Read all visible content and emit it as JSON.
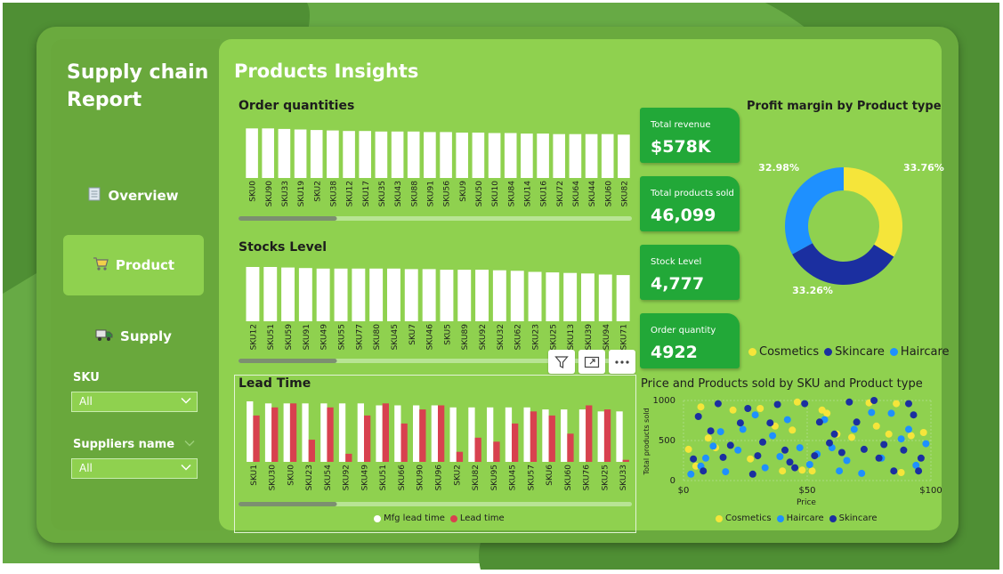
{
  "sidebar": {
    "title": "Supply chain Report",
    "nav": [
      {
        "label": "Overview",
        "icon": "document-icon",
        "active": false
      },
      {
        "label": "Product",
        "icon": "cart-icon",
        "active": true
      },
      {
        "label": "Supply",
        "icon": "truck-icon",
        "active": false
      }
    ],
    "slicers": [
      {
        "label": "SKU",
        "value": "All"
      },
      {
        "label": "Suppliers name",
        "value": "All"
      }
    ]
  },
  "main": {
    "page_title": "Products Insights"
  },
  "kpis": [
    {
      "label": "Total revenue",
      "value": "$578K"
    },
    {
      "label": "Total products sold",
      "value": "46,099"
    },
    {
      "label": "Stock Level",
      "value": "4,777"
    },
    {
      "label": "Order quantity",
      "value": "4922"
    }
  ],
  "toolbar": {
    "icons": [
      "filter-icon",
      "focus-mode-icon",
      "more-options-icon"
    ]
  },
  "colors": {
    "cosmetics": "#f5e53a",
    "skincare": "#1b2fa0",
    "haircare": "#1e90ff",
    "lead_time": "#d8414f",
    "kpi": "#22a838"
  },
  "chart_data": [
    {
      "type": "bar",
      "title": "Order quantities",
      "categories": [
        "SKU0",
        "SKU90",
        "SKU33",
        "SKU19",
        "SKU2",
        "SKU38",
        "SKU12",
        "SKU17",
        "SKU35",
        "SKU43",
        "SKU88",
        "SKU91",
        "SKU56",
        "SKU9",
        "SKU50",
        "SKU10",
        "SKU84",
        "SKU14",
        "SKU16",
        "SKU72",
        "SKU64",
        "SKU44",
        "SKU60",
        "SKU82"
      ],
      "values": [
        96,
        96,
        95,
        94,
        93,
        92,
        91,
        91,
        90,
        90,
        90,
        89,
        89,
        88,
        88,
        87,
        87,
        86,
        86,
        85,
        85,
        85,
        85,
        84
      ],
      "ylim": [
        0,
        100
      ],
      "scrollbar_position": 0.25
    },
    {
      "type": "bar",
      "title": "Stocks Level",
      "categories": [
        "SKU12",
        "SKU51",
        "SKU59",
        "SKU91",
        "SKU49",
        "SKU55",
        "SKU77",
        "SKU80",
        "SKU45",
        "SKU7",
        "SKU46",
        "SKU5",
        "SKU89",
        "SKU92",
        "SKU32",
        "SKU62",
        "SKU23",
        "SKU25",
        "SKU13",
        "SKU39",
        "SKU94",
        "SKU71"
      ],
      "values": [
        100,
        100,
        99,
        98,
        97,
        97,
        97,
        97,
        97,
        96,
        96,
        95,
        95,
        95,
        94,
        93,
        91,
        90,
        89,
        88,
        86,
        85
      ],
      "ylim": [
        0,
        100
      ],
      "scrollbar_position": 0.25
    },
    {
      "type": "bar",
      "title": "Lead Time",
      "categories": [
        "SKU1",
        "SKU30",
        "SKU0",
        "SKU23",
        "SKU54",
        "SKU92",
        "SKU49",
        "SKU51",
        "SKU66",
        "SKU90",
        "SKU96",
        "SKU2",
        "SKU82",
        "SKU95",
        "SKU45",
        "SKU57",
        "SKU6",
        "SKU60",
        "SKU76",
        "SKU25",
        "SKU33"
      ],
      "series": [
        {
          "name": "Mfg lead time",
          "values": [
            30,
            29,
            29,
            29,
            29,
            29,
            29,
            28,
            28,
            28,
            28,
            27,
            27,
            27,
            27,
            27,
            26,
            26,
            26,
            25,
            25
          ]
        },
        {
          "name": "Lead time",
          "values": [
            23,
            27,
            29,
            11,
            27,
            4,
            23,
            29,
            19,
            26,
            28,
            5,
            12,
            10,
            19,
            25,
            23,
            14,
            28,
            26,
            1
          ]
        }
      ],
      "ylim": [
        0,
        30
      ],
      "legend": "bottom",
      "scrollbar_position": 0.25
    },
    {
      "type": "pie",
      "title": "Profit margin by Product type",
      "donut": true,
      "categories": [
        "Cosmetics",
        "Skincare",
        "Haircare"
      ],
      "values": [
        33.76,
        33.26,
        32.98
      ],
      "labels": [
        "33.76%",
        "33.26%",
        "32.98%"
      ],
      "legend": "bottom"
    },
    {
      "type": "scatter",
      "title": "Price and Products sold by SKU and Product type",
      "xlabel": "Price",
      "ylabel": "Total products sold",
      "xlim": [
        0,
        100
      ],
      "ylim": [
        0,
        1000
      ],
      "xticks": [
        "$0",
        "$50",
        "$100"
      ],
      "yticks": [
        "0",
        "500",
        "1000"
      ],
      "legend": "bottom",
      "series": [
        {
          "name": "Cosmetics",
          "points": [
            [
              2,
              390
            ],
            [
              5,
              180
            ],
            [
              7,
              920
            ],
            [
              10,
              530
            ],
            [
              13,
              410
            ],
            [
              20,
              880
            ],
            [
              27,
              270
            ],
            [
              31,
              900
            ],
            [
              37,
              680
            ],
            [
              40,
              120
            ],
            [
              44,
              630
            ],
            [
              46,
              980
            ],
            [
              48,
              130
            ],
            [
              52,
              120
            ],
            [
              56,
              880
            ],
            [
              58,
              840
            ],
            [
              62,
              580
            ],
            [
              68,
              540
            ],
            [
              75,
              970
            ],
            [
              78,
              680
            ],
            [
              83,
              580
            ],
            [
              86,
              960
            ],
            [
              88,
              100
            ],
            [
              92,
              560
            ],
            [
              97,
              600
            ]
          ]
        },
        {
          "name": "Haircare",
          "points": [
            [
              3,
              80
            ],
            [
              7,
              180
            ],
            [
              9,
              280
            ],
            [
              12,
              430
            ],
            [
              15,
              610
            ],
            [
              17,
              110
            ],
            [
              22,
              380
            ],
            [
              24,
              640
            ],
            [
              29,
              820
            ],
            [
              33,
              160
            ],
            [
              36,
              560
            ],
            [
              39,
              300
            ],
            [
              42,
              760
            ],
            [
              47,
              410
            ],
            [
              51,
              200
            ],
            [
              54,
              330
            ],
            [
              57,
              760
            ],
            [
              60,
              410
            ],
            [
              63,
              120
            ],
            [
              66,
              250
            ],
            [
              69,
              640
            ],
            [
              72,
              90
            ],
            [
              76,
              850
            ],
            [
              80,
              280
            ],
            [
              84,
              840
            ],
            [
              88,
              520
            ],
            [
              91,
              640
            ],
            [
              94,
              190
            ],
            [
              98,
              460
            ]
          ]
        },
        {
          "name": "Skincare",
          "points": [
            [
              4,
              270
            ],
            [
              6,
              800
            ],
            [
              8,
              120
            ],
            [
              11,
              620
            ],
            [
              14,
              960
            ],
            [
              16,
              290
            ],
            [
              19,
              440
            ],
            [
              23,
              720
            ],
            [
              26,
              900
            ],
            [
              28,
              80
            ],
            [
              30,
              310
            ],
            [
              32,
              480
            ],
            [
              35,
              720
            ],
            [
              38,
              950
            ],
            [
              41,
              380
            ],
            [
              43,
              230
            ],
            [
              45,
              160
            ],
            [
              49,
              960
            ],
            [
              53,
              310
            ],
            [
              55,
              730
            ],
            [
              59,
              470
            ],
            [
              61,
              580
            ],
            [
              64,
              350
            ],
            [
              67,
              980
            ],
            [
              70,
              730
            ],
            [
              73,
              390
            ],
            [
              77,
              1000
            ],
            [
              79,
              280
            ],
            [
              81,
              450
            ],
            [
              85,
              120
            ],
            [
              89,
              380
            ],
            [
              91,
              960
            ],
            [
              93,
              820
            ],
            [
              95,
              120
            ],
            [
              96,
              280
            ]
          ]
        }
      ]
    }
  ]
}
